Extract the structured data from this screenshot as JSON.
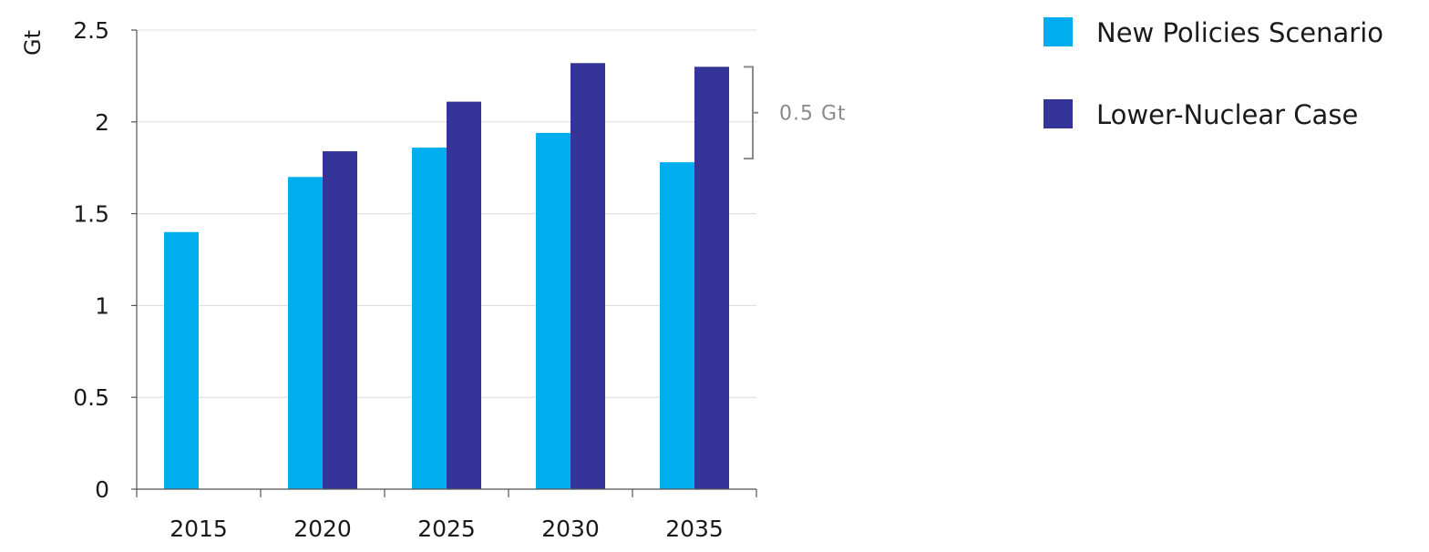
{
  "chart_data": {
    "type": "bar",
    "title": "",
    "xlabel": "",
    "ylabel": "Gt",
    "ylim": [
      0,
      2.5
    ],
    "yticks": [
      0,
      0.5,
      1,
      1.5,
      2,
      2.5
    ],
    "ytick_labels": [
      "0",
      "0.5",
      "1",
      "1.5",
      "2",
      "2.5"
    ],
    "categories": [
      "2015",
      "2020",
      "2025",
      "2030",
      "2035"
    ],
    "series": [
      {
        "name": "New Policies Scenario",
        "color": "#00AEEF",
        "values": [
          1.4,
          1.7,
          1.86,
          1.94,
          1.78
        ]
      },
      {
        "name": "Lower-Nuclear Case",
        "color": "#353499",
        "values": [
          null,
          1.84,
          2.11,
          2.32,
          2.3
        ]
      }
    ],
    "grid": true,
    "legend_position": "top-right",
    "annotation": {
      "text": "0.5 Gt",
      "from": 1.8,
      "to": 2.3,
      "category": "2035"
    }
  }
}
